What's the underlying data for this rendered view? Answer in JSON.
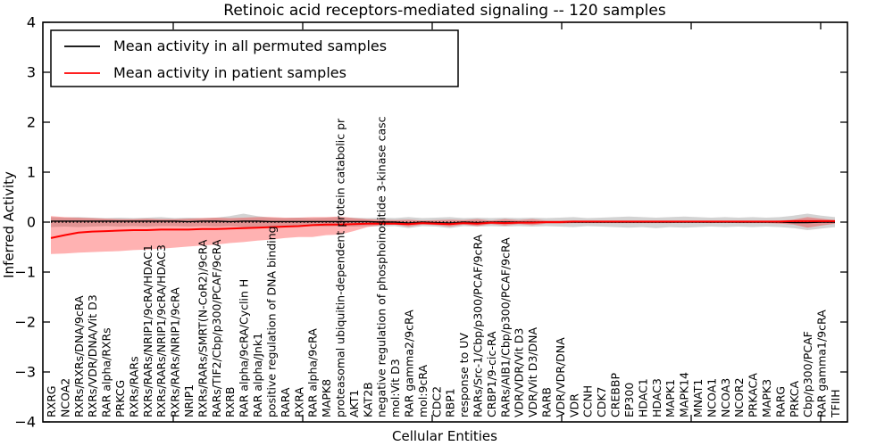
{
  "chart_data": {
    "type": "line",
    "title": "Retinoic acid receptors-mediated signaling -- 120 samples",
    "xlabel": "Cellular Entities",
    "ylabel": "Inferred Activity",
    "ylim": [
      -4,
      4
    ],
    "ytick_values": [
      -4,
      -3,
      -2,
      -1,
      0,
      1,
      2,
      3,
      4
    ],
    "ytick_labels": [
      "−4",
      "−3",
      "−2",
      "−1",
      "0",
      "1",
      "2",
      "3",
      "4"
    ],
    "grid": false,
    "legend_position": "upper left",
    "background_color": "#ffffff",
    "zero_reference_line": {
      "y": 0,
      "style": "dotted",
      "color": "#000000"
    },
    "categories": [
      "RXRG",
      "NCOA2",
      "RXRs/RXRs/DNA/9cRA",
      "RXRs/VDR/DNA/Vit D3",
      "RAR alpha/RXRs",
      "PRKCG",
      "RXRs/RARs",
      "RXRs/RARs/NRIP1/9cRA/HDAC1",
      "RXRs/RARs/NRIP1/9cRA/HDAC3",
      "RXRs/RARs/NRIP1/9cRA",
      "NRIP1",
      "RXRs/RARs/SMRT(N-CoR2)/9cRA",
      "RARs/TIF2/Cbp/p300/PCAF/9cRA",
      "RXRB",
      "RAR alpha/9cRA/Cyclin H",
      "RAR alpha/Jnk1",
      "positive regulation of DNA binding",
      "RARA",
      "RXRA",
      "RAR alpha/9cRA",
      "MAPK8",
      "proteasomal ubiquitin-dependent protein catabolic pr",
      "AKT1",
      "KAT2B",
      "negative regulation of phosphoinositide 3-kinase casc",
      "mol:Vit D3",
      "RAR gamma2/9cRA",
      "mol:9cRA",
      "CDC2",
      "RBP1",
      "response to UV",
      "RARs/Src-1/Cbp/p300/PCAF/9cRA",
      "CRBP1/9-cic-RA",
      "RARs/AIB1/Cbp/p300/PCAF/9cRA",
      "VDR/VDR/Vit D3",
      "VDR/Vit D3/DNA",
      "RARB",
      "VDR/VDR/DNA",
      "VDR",
      "CCNH",
      "CDK7",
      "CREBBP",
      "EP300",
      "HDAC1",
      "HDAC3",
      "MAPK1",
      "MAPK14",
      "MNAT1",
      "NCOA1",
      "NCOA3",
      "NCOR2",
      "PRKACA",
      "MAPK3",
      "RARG",
      "PRKCA",
      "Cbp/p300/PCAF",
      "RAR gamma1/9cRA",
      "TFIIH"
    ],
    "series": [
      {
        "name": "Mean activity in all permuted samples",
        "color": "#000000",
        "band_fill": "rgba(128,128,128,0.35)",
        "values": [
          0.02,
          0.02,
          0.02,
          0.02,
          0.02,
          0.02,
          0.02,
          0.02,
          0.02,
          0.02,
          0.01,
          0.02,
          0.02,
          0.01,
          0.02,
          0.02,
          0.01,
          0.01,
          0.01,
          0.01,
          0.01,
          0.01,
          0.01,
          0.01,
          0.0,
          0.0,
          -0.02,
          0.0,
          -0.01,
          -0.02,
          0.0,
          -0.01,
          0.0,
          0.0,
          0.0,
          0.0,
          0.0,
          0.0,
          0.0,
          0.0,
          0.0,
          0.0,
          0.0,
          0.0,
          0.0,
          0.0,
          0.0,
          0.0,
          0.0,
          0.0,
          0.0,
          0.0,
          0.0,
          0.0,
          -0.01,
          -0.01,
          0.0,
          0.0
        ],
        "band_lower": [
          -0.1,
          -0.09,
          -0.1,
          -0.09,
          -0.08,
          -0.09,
          -0.08,
          -0.09,
          -0.08,
          -0.08,
          -0.09,
          -0.08,
          -0.09,
          -0.08,
          -0.1,
          -0.1,
          -0.09,
          -0.08,
          -0.09,
          -0.08,
          -0.09,
          -0.08,
          -0.09,
          -0.08,
          -0.09,
          -0.08,
          -0.12,
          -0.08,
          -0.09,
          -0.12,
          -0.08,
          -0.09,
          -0.08,
          -0.09,
          -0.08,
          -0.09,
          -0.08,
          -0.09,
          -0.1,
          -0.08,
          -0.09,
          -0.1,
          -0.11,
          -0.1,
          -0.12,
          -0.1,
          -0.11,
          -0.1,
          -0.09,
          -0.1,
          -0.09,
          -0.1,
          -0.09,
          -0.1,
          -0.12,
          -0.16,
          -0.13,
          -0.1
        ],
        "band_upper": [
          0.1,
          0.09,
          0.1,
          0.09,
          0.08,
          0.09,
          0.08,
          0.09,
          0.1,
          0.08,
          0.09,
          0.08,
          0.09,
          0.12,
          0.17,
          0.12,
          0.09,
          0.08,
          0.09,
          0.08,
          0.09,
          0.1,
          0.09,
          0.08,
          0.09,
          0.08,
          0.1,
          0.08,
          0.09,
          0.1,
          0.08,
          0.09,
          0.08,
          0.09,
          0.08,
          0.09,
          0.08,
          0.09,
          0.1,
          0.08,
          0.09,
          0.1,
          0.11,
          0.1,
          0.09,
          0.1,
          0.11,
          0.1,
          0.09,
          0.1,
          0.09,
          0.1,
          0.09,
          0.1,
          0.13,
          0.17,
          0.13,
          0.1
        ]
      },
      {
        "name": "Mean activity in patient samples",
        "color": "#ff0000",
        "band_fill": "rgba(255,0,0,0.30)",
        "values": [
          -0.32,
          -0.26,
          -0.21,
          -0.19,
          -0.18,
          -0.17,
          -0.16,
          -0.16,
          -0.15,
          -0.15,
          -0.15,
          -0.14,
          -0.14,
          -0.13,
          -0.12,
          -0.11,
          -0.1,
          -0.09,
          -0.08,
          -0.06,
          -0.05,
          -0.05,
          -0.04,
          -0.03,
          -0.03,
          -0.03,
          -0.04,
          -0.02,
          -0.03,
          -0.04,
          -0.02,
          -0.03,
          -0.01,
          -0.02,
          -0.01,
          -0.01,
          0.0,
          0.0,
          0.01,
          0.01,
          0.01,
          0.01,
          0.01,
          0.01,
          0.01,
          0.01,
          0.01,
          0.01,
          0.01,
          0.01,
          0.01,
          0.01,
          0.01,
          0.01,
          0.02,
          0.02,
          0.02,
          0.02
        ],
        "band_lower": [
          -0.64,
          -0.63,
          -0.61,
          -0.6,
          -0.59,
          -0.58,
          -0.56,
          -0.55,
          -0.53,
          -0.51,
          -0.49,
          -0.47,
          -0.45,
          -0.42,
          -0.4,
          -0.37,
          -0.35,
          -0.32,
          -0.3,
          -0.3,
          -0.26,
          -0.25,
          -0.18,
          -0.1,
          -0.06,
          -0.05,
          -0.09,
          -0.05,
          -0.06,
          -0.09,
          -0.05,
          -0.08,
          -0.04,
          -0.07,
          -0.04,
          -0.06,
          -0.03,
          -0.03,
          -0.02,
          -0.02,
          -0.02,
          -0.02,
          -0.02,
          -0.02,
          -0.02,
          -0.02,
          -0.01,
          -0.01,
          -0.02,
          -0.01,
          -0.02,
          -0.02,
          -0.02,
          -0.03,
          -0.05,
          -0.11,
          -0.07,
          -0.03
        ],
        "band_upper": [
          0.12,
          0.1,
          0.09,
          0.08,
          0.07,
          0.06,
          0.06,
          0.07,
          0.06,
          0.06,
          0.07,
          0.08,
          0.09,
          0.08,
          0.09,
          0.1,
          0.1,
          0.09,
          0.09,
          0.1,
          0.1,
          0.11,
          0.08,
          0.06,
          0.05,
          0.04,
          0.05,
          0.03,
          0.04,
          0.05,
          0.04,
          0.06,
          0.03,
          0.06,
          0.04,
          0.06,
          0.03,
          0.03,
          0.03,
          0.02,
          0.02,
          0.02,
          0.02,
          0.02,
          0.02,
          0.02,
          0.02,
          0.02,
          0.02,
          0.02,
          0.02,
          0.02,
          0.02,
          0.03,
          0.05,
          0.1,
          0.07,
          0.04
        ]
      }
    ]
  },
  "legend": {
    "items": [
      {
        "label": "Mean activity in all permuted samples",
        "color": "#000000"
      },
      {
        "label": "Mean activity in patient samples",
        "color": "#ff0000"
      }
    ]
  }
}
